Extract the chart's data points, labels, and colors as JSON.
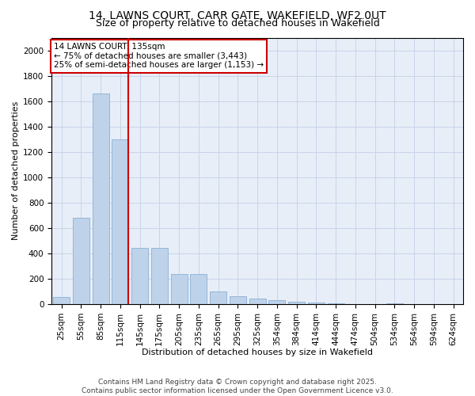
{
  "title1": "14, LAWNS COURT, CARR GATE, WAKEFIELD, WF2 0UT",
  "title2": "Size of property relative to detached houses in Wakefield",
  "xlabel": "Distribution of detached houses by size in Wakefield",
  "ylabel": "Number of detached properties",
  "categories": [
    "25sqm",
    "55sqm",
    "85sqm",
    "115sqm",
    "145sqm",
    "175sqm",
    "205sqm",
    "235sqm",
    "265sqm",
    "295sqm",
    "325sqm",
    "354sqm",
    "384sqm",
    "414sqm",
    "444sqm",
    "474sqm",
    "504sqm",
    "534sqm",
    "564sqm",
    "594sqm",
    "624sqm"
  ],
  "values": [
    55,
    680,
    1660,
    1300,
    440,
    440,
    240,
    240,
    100,
    65,
    45,
    28,
    18,
    10,
    8,
    0,
    0,
    8,
    0,
    0,
    0
  ],
  "bar_color": "#bed3ea",
  "bar_edge_color": "#8ab0d4",
  "vline_x_index": 3,
  "vline_color": "#cc0000",
  "annotation_text": "14 LAWNS COURT: 135sqm\n← 75% of detached houses are smaller (3,443)\n25% of semi-detached houses are larger (1,153) →",
  "annotation_box_color": "#ffffff",
  "annotation_box_edge": "#cc0000",
  "ylim": [
    0,
    2100
  ],
  "yticks": [
    0,
    200,
    400,
    600,
    800,
    1000,
    1200,
    1400,
    1600,
    1800,
    2000
  ],
  "bg_color": "#e8eef8",
  "footer1": "Contains HM Land Registry data © Crown copyright and database right 2025.",
  "footer2": "Contains public sector information licensed under the Open Government Licence v3.0.",
  "title_fontsize": 10,
  "subtitle_fontsize": 9,
  "axis_label_fontsize": 8,
  "tick_fontsize": 7.5,
  "annotation_fontsize": 7.5,
  "footer_fontsize": 6.5
}
